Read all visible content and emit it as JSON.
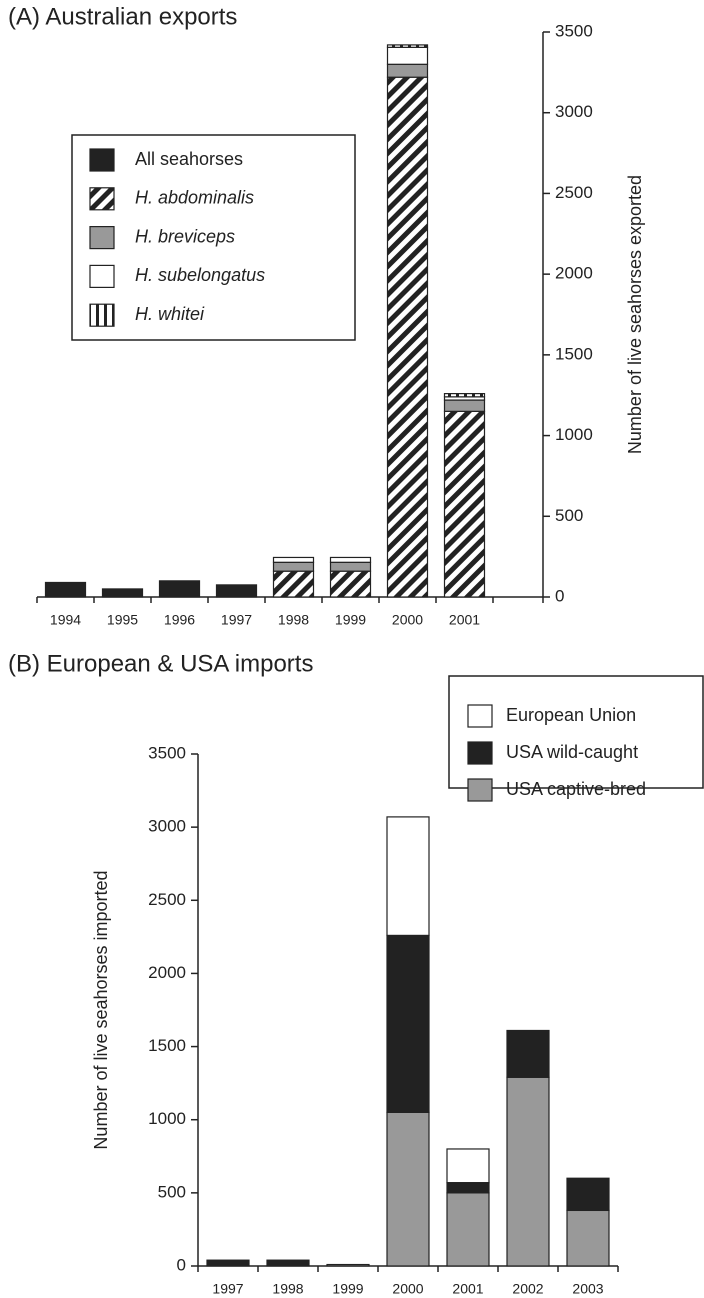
{
  "chart_data": [
    {
      "type": "stacked-bar",
      "title": "(A) Australian exports",
      "y_label": "Number of live seahorses exported",
      "categories": [
        "1994",
        "1995",
        "1996",
        "1997",
        "1998",
        "1999",
        "2000",
        "2001"
      ],
      "series": [
        {
          "name": "All seahorses",
          "color": "#222222",
          "pattern": null,
          "values": [
            90,
            50,
            100,
            75,
            null,
            null,
            null,
            null
          ]
        },
        {
          "name": "H. abdominalis",
          "color": "#222222",
          "pattern": "diagonal",
          "values": [
            null,
            null,
            null,
            null,
            160,
            160,
            3220,
            1150
          ]
        },
        {
          "name": "H. breviceps",
          "color": "#999999",
          "pattern": null,
          "values": [
            null,
            null,
            null,
            null,
            55,
            55,
            80,
            70
          ]
        },
        {
          "name": "H. subelongatus",
          "color": "#ffffff",
          "pattern": null,
          "values": [
            null,
            null,
            null,
            null,
            30,
            30,
            105,
            20
          ]
        },
        {
          "name": "H. whitei",
          "color": "#222222",
          "pattern": "vertical",
          "values": [
            null,
            null,
            null,
            null,
            null,
            null,
            15,
            20
          ]
        }
      ],
      "ylim": [
        0,
        3500
      ],
      "yticks": [
        0,
        500,
        1000,
        1500,
        2000,
        2500,
        3000,
        3500
      ],
      "y_axis_side": "right"
    },
    {
      "type": "stacked-bar",
      "title": "(B) European & USA imports",
      "y_label": "Number of live seahorses imported",
      "categories": [
        "1997",
        "1998",
        "1999",
        "2000",
        "2001",
        "2002",
        "2003"
      ],
      "series": [
        {
          "name": "USA captive-bred",
          "color": "#999999",
          "pattern": null,
          "values": [
            null,
            null,
            10,
            1050,
            500,
            1290,
            380
          ]
        },
        {
          "name": "USA wild-caught",
          "color": "#222222",
          "pattern": null,
          "values": [
            40,
            40,
            null,
            1210,
            70,
            320,
            220
          ]
        },
        {
          "name": "European Union",
          "color": "#ffffff",
          "pattern": null,
          "values": [
            null,
            null,
            null,
            810,
            230,
            null,
            null
          ]
        }
      ],
      "ylim": [
        0,
        3500
      ],
      "yticks": [
        0,
        500,
        1000,
        1500,
        2000,
        2500,
        3000,
        3500
      ],
      "y_axis_side": "left"
    }
  ]
}
